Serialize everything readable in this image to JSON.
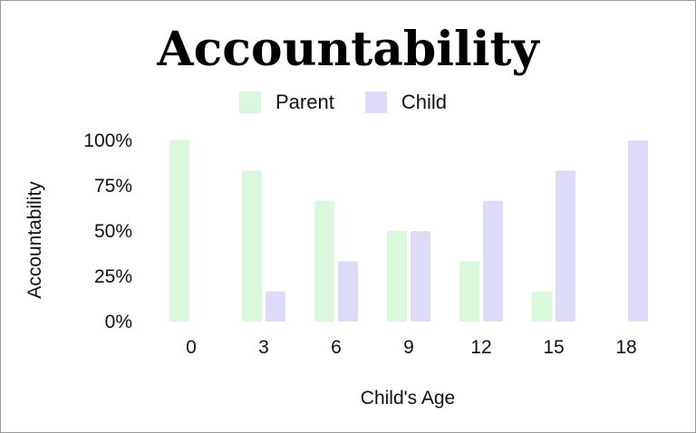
{
  "chart_data": {
    "type": "bar",
    "title": "Accountability",
    "xlabel": "Child's Age",
    "ylabel": "Accountability",
    "categories": [
      "0",
      "3",
      "6",
      "9",
      "12",
      "15",
      "18"
    ],
    "series": [
      {
        "name": "Parent",
        "color": "#dcf8dc",
        "values": [
          100,
          83.3,
          66.7,
          50,
          33.3,
          16.7,
          0
        ]
      },
      {
        "name": "Child",
        "color": "#dcdcf8",
        "values": [
          0,
          16.7,
          33.3,
          50,
          66.7,
          83.3,
          100
        ]
      }
    ],
    "y_ticks": [
      "0%",
      "25%",
      "50%",
      "75%",
      "100%"
    ],
    "ylim": [
      0,
      100
    ],
    "grid": false,
    "legend_position": "top-center"
  }
}
